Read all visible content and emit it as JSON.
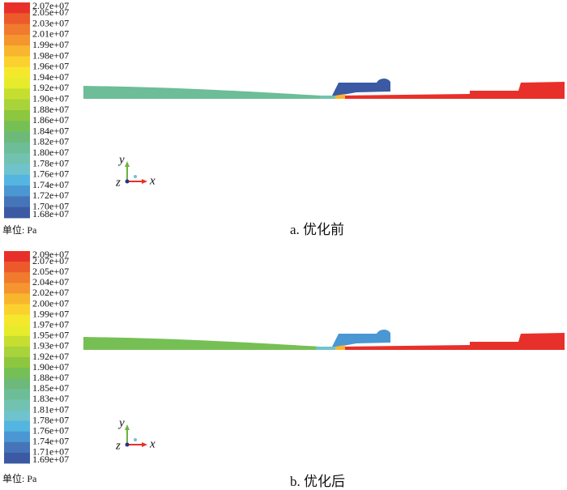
{
  "panels": [
    {
      "legend_labels": [
        "2.07e+07",
        "2.05e+07",
        "2.03e+07",
        "2.01e+07",
        "1.99e+07",
        "1.98e+07",
        "1.96e+07",
        "1.94e+07",
        "1.92e+07",
        "1.90e+07",
        "1.88e+07",
        "1.86e+07",
        "1.84e+07",
        "1.82e+07",
        "1.80e+07",
        "1.78e+07",
        "1.76e+07",
        "1.74e+07",
        "1.72e+07",
        "1.70e+07",
        "1.68e+07"
      ],
      "unit": "单位: Pa",
      "caption": "a. 优化前",
      "axes": {
        "y": "y",
        "z": "z",
        "x": "x"
      }
    },
    {
      "legend_labels": [
        "2.09e+07",
        "2.07e+07",
        "2.05e+07",
        "2.04e+07",
        "2.02e+07",
        "2.00e+07",
        "1.99e+07",
        "1.97e+07",
        "1.95e+07",
        "1.93e+07",
        "1.92e+07",
        "1.90e+07",
        "1.88e+07",
        "1.85e+07",
        "1.83e+07",
        "1.81e+07",
        "1.78e+07",
        "1.76e+07",
        "1.74e+07",
        "1.71e+07",
        "1.69e+07"
      ],
      "unit": "单位: Pa",
      "caption": "b. 优化后",
      "axes": {
        "y": "y",
        "z": "z",
        "x": "x"
      }
    }
  ],
  "legend_colors": [
    "#e8302a",
    "#ec5a2b",
    "#f07a2e",
    "#f5952f",
    "#f8b62e",
    "#fbd12f",
    "#f5e82c",
    "#e6ec2c",
    "#c6de30",
    "#a9d33a",
    "#8dc63f",
    "#76bf55",
    "#6cb97a",
    "#6cbd98",
    "#72c2b0",
    "#6fc3cd",
    "#54b5e0",
    "#4a97d3",
    "#4575b8",
    "#3b5aa3"
  ]
}
